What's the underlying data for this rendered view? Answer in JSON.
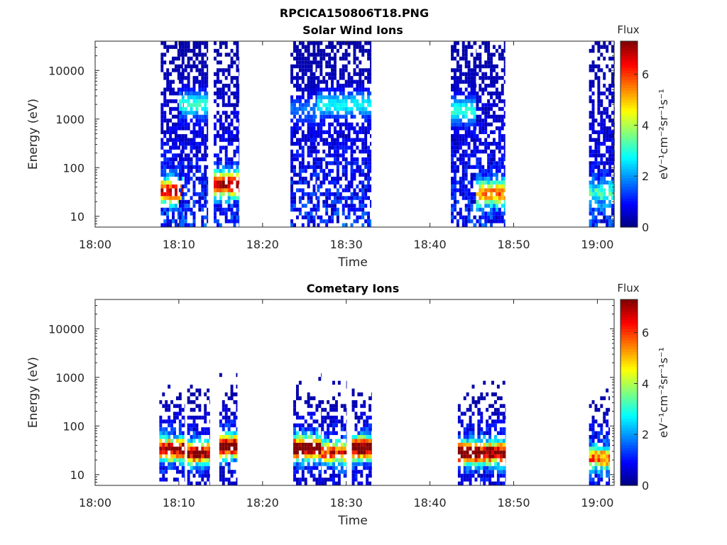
{
  "figure": {
    "title": "RPCICA150806T18.PNG"
  },
  "colors": {
    "colormap": "jet",
    "axis": "#262626",
    "background": "#ffffff"
  },
  "chart_data": [
    {
      "type": "heatmap",
      "title": "Solar Wind Ions",
      "xlabel": "Time",
      "ylabel": "Energy (eV)",
      "y_scale": "log",
      "ylim": [
        6,
        40000
      ],
      "xlim": [
        "18:00",
        "19:02"
      ],
      "x_ticks": [
        "18:00",
        "18:10",
        "18:20",
        "18:30",
        "18:40",
        "18:50",
        "19:00"
      ],
      "y_ticks": [
        "10",
        "100",
        "1000",
        "10000"
      ],
      "colorbar": {
        "label": "Flux",
        "units_label": "eV⁻¹cm⁻²sr⁻¹s⁻¹",
        "range": [
          0,
          7.3
        ],
        "ticks": [
          "0",
          "2",
          "4",
          "6"
        ]
      },
      "bursts": [
        {
          "start": "18:07:50",
          "end": "18:10:30",
          "hot_energy_eV": 33,
          "hot_flux": 5.8
        },
        {
          "start": "18:10:00",
          "end": "18:13:30",
          "hot_energy_eV": 2000,
          "hot_flux": 2.6
        },
        {
          "start": "18:14:10",
          "end": "18:17:10",
          "hot_energy_eV": 45,
          "hot_flux": 6.2
        },
        {
          "start": "18:23:20",
          "end": "18:26:30",
          "hot_energy_eV": 1500,
          "hot_flux": 1.2
        },
        {
          "start": "18:26:30",
          "end": "18:33:00",
          "hot_energy_eV": 2000,
          "hot_flux": 2.2
        },
        {
          "start": "18:42:30",
          "end": "18:45:30",
          "hot_energy_eV": 1500,
          "hot_flux": 2.6
        },
        {
          "start": "18:45:30",
          "end": "18:49:00",
          "hot_energy_eV": 30,
          "hot_flux": 4.6
        },
        {
          "start": "18:59:00",
          "end": "19:02:00",
          "hot_energy_eV": 30,
          "hot_flux": 2.2
        }
      ]
    },
    {
      "type": "heatmap",
      "title": "Cometary Ions",
      "xlabel": "Time",
      "ylabel": "Energy (eV)",
      "y_scale": "log",
      "ylim": [
        6,
        40000
      ],
      "xlim": [
        "18:00",
        "19:02"
      ],
      "x_ticks": [
        "18:00",
        "18:10",
        "18:20",
        "18:30",
        "18:40",
        "18:50",
        "19:00"
      ],
      "y_ticks": [
        "10",
        "100",
        "1000",
        "10000"
      ],
      "colorbar": {
        "label": "Flux",
        "units_label": "eV⁻¹cm⁻²sr⁻¹s⁻¹",
        "range": [
          0,
          7.3
        ],
        "ticks": [
          "0",
          "2",
          "4",
          "6"
        ]
      },
      "bursts": [
        {
          "start": "18:07:40",
          "end": "18:10:40",
          "hot_energy_eV": 33,
          "hot_flux": 6.2
        },
        {
          "start": "18:11:00",
          "end": "18:13:40",
          "hot_energy_eV": 28,
          "hot_flux": 6.0
        },
        {
          "start": "18:14:50",
          "end": "18:17:00",
          "hot_energy_eV": 38,
          "hot_flux": 7.0
        },
        {
          "start": "18:23:40",
          "end": "18:27:00",
          "hot_energy_eV": 35,
          "hot_flux": 6.8
        },
        {
          "start": "18:27:00",
          "end": "18:30:00",
          "hot_energy_eV": 28,
          "hot_flux": 4.8
        },
        {
          "start": "18:30:40",
          "end": "18:33:00",
          "hot_energy_eV": 35,
          "hot_flux": 6.8
        },
        {
          "start": "18:43:20",
          "end": "18:46:00",
          "hot_energy_eV": 28,
          "hot_flux": 6.8
        },
        {
          "start": "18:46:00",
          "end": "18:49:00",
          "hot_energy_eV": 28,
          "hot_flux": 6.2
        },
        {
          "start": "18:59:00",
          "end": "19:01:30",
          "hot_energy_eV": 22,
          "hot_flux": 4.5
        }
      ]
    }
  ]
}
